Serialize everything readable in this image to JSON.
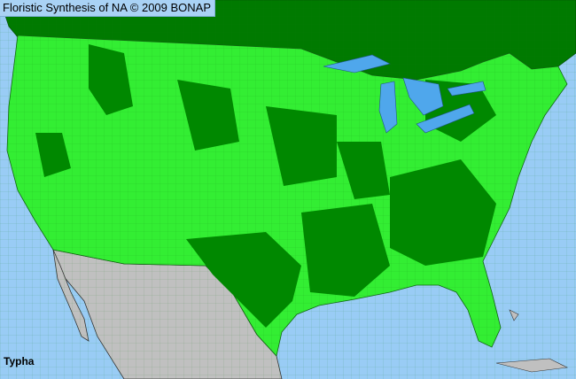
{
  "header": {
    "title": "Floristic Synthesis of NA © 2009 BONAP"
  },
  "map": {
    "taxon": "Typha",
    "colors": {
      "ocean": "#99ccf5",
      "present_in_state": "#33ee33",
      "present_in_county": "#008800",
      "outside_range": "#c0c0c0",
      "canada": "#007a00",
      "lakes": "#4fa7ec"
    }
  }
}
